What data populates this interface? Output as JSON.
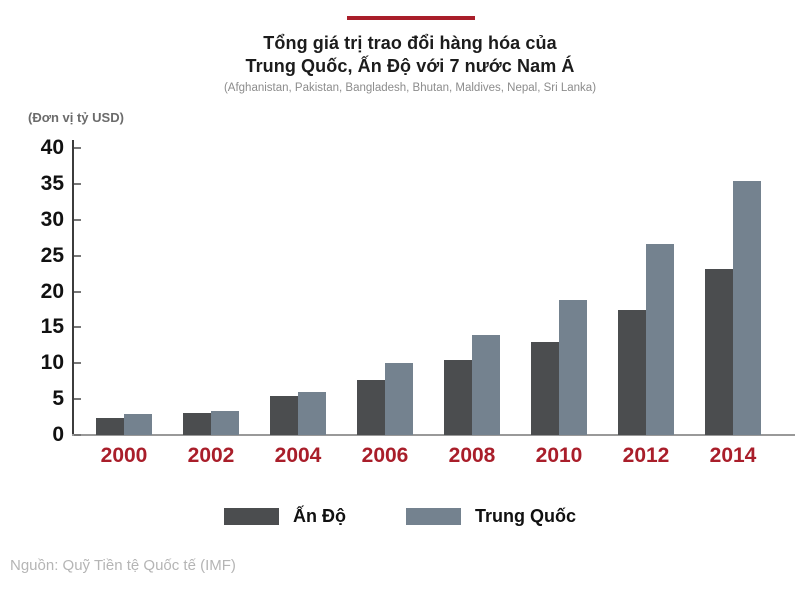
{
  "header": {
    "title_line1": "Tổng giá trị trao đổi hàng hóa của",
    "title_line2": "Trung Quốc, Ấn Độ với 7 nước Nam Á",
    "subtitle": "(Afghanistan, Pakistan, Bangladesh, Bhutan, Maldives, Nepal, Sri Lanka)",
    "accent_color": "#a91e2a"
  },
  "chart_data": {
    "type": "bar",
    "title": "Tổng giá trị trao đổi hàng hóa của Trung Quốc, Ấn Độ với 7 nước Nam Á",
    "subtitle": "(Afghanistan, Pakistan, Bangladesh, Bhutan, Maldives, Nepal, Sri Lanka)",
    "unit_label": "(Đơn vị tỷ USD)",
    "categories": [
      "2000",
      "2002",
      "2004",
      "2006",
      "2008",
      "2010",
      "2012",
      "2014"
    ],
    "series": [
      {
        "name": "Ấn Độ",
        "color": "#4b4d4f",
        "values": [
          2.3,
          3.1,
          5.5,
          7.7,
          10.5,
          13.0,
          17.4,
          23.1
        ]
      },
      {
        "name": "Trung Quốc",
        "color": "#74828f",
        "values": [
          2.9,
          3.4,
          6.0,
          10.0,
          13.9,
          18.8,
          26.6,
          35.4
        ]
      }
    ],
    "ylim": [
      0,
      40
    ],
    "yticks": [
      0,
      5,
      10,
      15,
      20,
      25,
      30,
      35,
      40
    ],
    "grid": false,
    "legend_position": "bottom",
    "xtick_color": "#a91e2a",
    "ytick_color": "#111111"
  },
  "footer": {
    "source": "Nguồn: Quỹ Tiền tệ Quốc tế (IMF)"
  }
}
